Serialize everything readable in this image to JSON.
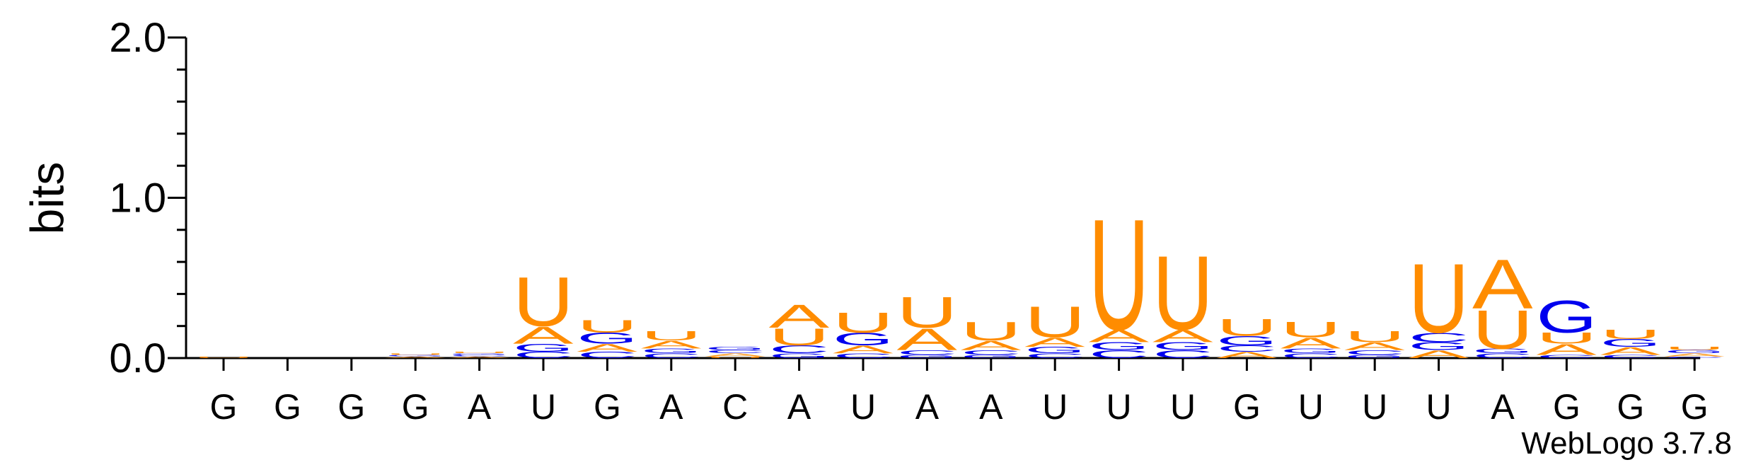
{
  "chart_data": {
    "type": "logo",
    "ylabel": "bits",
    "footer": "WebLogo 3.7.8",
    "categories": [
      "G",
      "G",
      "G",
      "G",
      "A",
      "U",
      "G",
      "A",
      "C",
      "A",
      "U",
      "A",
      "A",
      "U",
      "U",
      "U",
      "G",
      "U",
      "U",
      "U",
      "A",
      "G",
      "G",
      "G"
    ],
    "ylim": [
      0,
      2
    ],
    "yticks": [
      {
        "value": 0,
        "label": "0.0"
      },
      {
        "value": 1,
        "label": "1.0"
      },
      {
        "value": 2,
        "label": "2.0"
      }
    ],
    "yminorticks": [
      0.2,
      0.4,
      0.6,
      0.8,
      1.2,
      1.4,
      1.6,
      1.8
    ],
    "series": [
      {
        "name": "A",
        "color": "#ff8c00",
        "values": [
          0,
          0,
          0,
          0.01,
          0.01,
          0.11,
          0.05,
          0.05,
          0.02,
          0.15,
          0.05,
          0.14,
          0.06,
          0.06,
          0.08,
          0.08,
          0.04,
          0.07,
          0.05,
          0.05,
          0.32,
          0.07,
          0.05,
          0.02
        ]
      },
      {
        "name": "C",
        "color": "#0000ee",
        "values": [
          0,
          0,
          0,
          0,
          0.01,
          0.04,
          0.04,
          0.03,
          0.02,
          0.05,
          0.03,
          0.03,
          0.03,
          0.03,
          0.05,
          0.05,
          0.04,
          0.03,
          0.03,
          0.06,
          0.03,
          0.02,
          0.02,
          0.01
        ]
      },
      {
        "name": "G",
        "color": "#0000ee",
        "values": [
          0,
          0,
          0,
          0.01,
          0.01,
          0.05,
          0.07,
          0.03,
          0.02,
          0.03,
          0.08,
          0.02,
          0.02,
          0.04,
          0.05,
          0.05,
          0.06,
          0.03,
          0.02,
          0.05,
          0.03,
          0.21,
          0.05,
          0.02
        ]
      },
      {
        "name": "U",
        "color": "#ff8c00",
        "values": [
          0.01,
          0,
          0,
          0.01,
          0.01,
          0.32,
          0.08,
          0.06,
          0.01,
          0.11,
          0.13,
          0.2,
          0.12,
          0.2,
          0.72,
          0.48,
          0.11,
          0.1,
          0.07,
          0.45,
          0.25,
          0.07,
          0.06,
          0.02
        ]
      }
    ]
  }
}
